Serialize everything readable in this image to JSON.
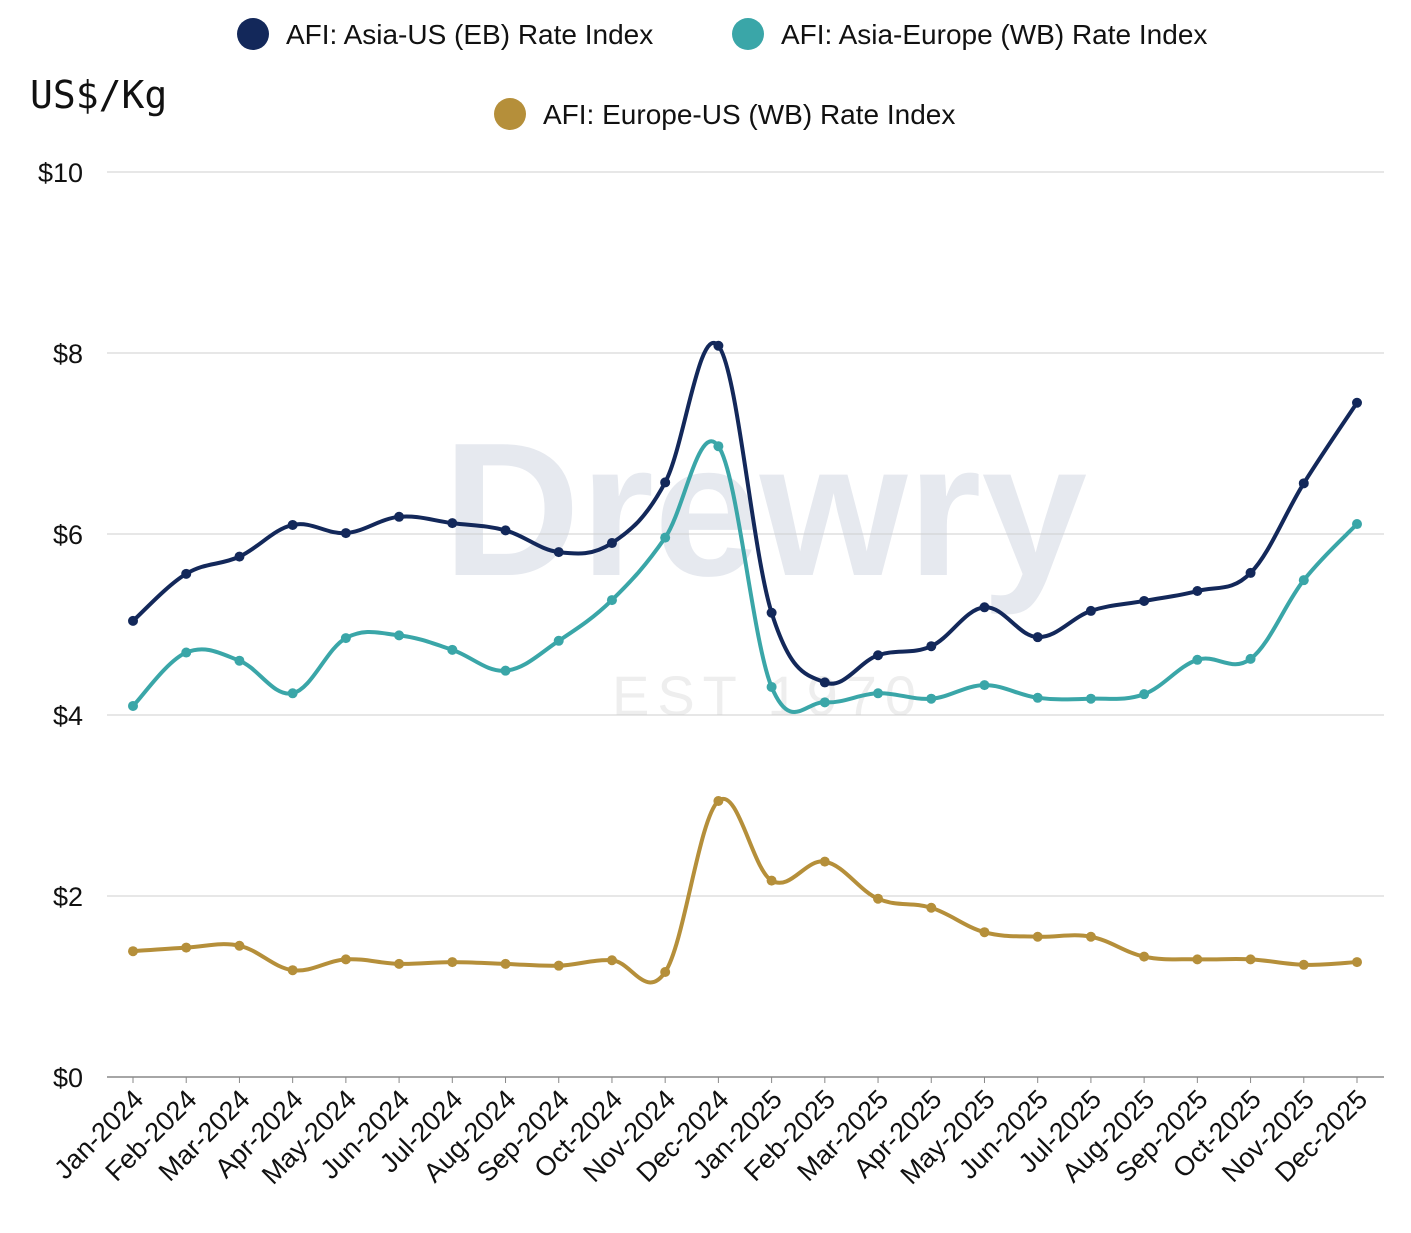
{
  "chart_data": {
    "type": "line",
    "title": "",
    "ylabel": "US$/Kg",
    "xlabel": "",
    "ylim": [
      0,
      10
    ],
    "yticks": [
      0,
      2,
      4,
      6,
      8,
      10
    ],
    "ytick_labels": [
      "$0",
      "$2",
      "$4",
      "$6",
      "$8",
      "$10"
    ],
    "grid": "horizontal",
    "legend_position": "top-center",
    "categories": [
      "Jan-2024",
      "Feb-2024",
      "Mar-2024",
      "Apr-2024",
      "May-2024",
      "Jun-2024",
      "Jul-2024",
      "Aug-2024",
      "Sep-2024",
      "Oct-2024",
      "Nov-2024",
      "Dec-2024",
      "Jan-2025",
      "Feb-2025",
      "Mar-2025",
      "Apr-2025",
      "May-2025",
      "Jun-2025",
      "Jul-2025",
      "Aug-2025",
      "Sep-2025",
      "Oct-2025",
      "Nov-2025",
      "Dec-2025"
    ],
    "series": [
      {
        "name": "AFI: Asia-US (EB) Rate Index",
        "color": "#13285a",
        "values": [
          5.04,
          5.56,
          5.75,
          6.1,
          6.01,
          6.19,
          6.12,
          6.04,
          5.8,
          5.9,
          6.57,
          8.08,
          5.13,
          4.36,
          4.66,
          4.76,
          5.19,
          4.86,
          5.15,
          5.26,
          5.37,
          5.57,
          6.56,
          7.45
        ]
      },
      {
        "name": "AFI: Asia-Europe (WB) Rate Index",
        "color": "#3aa6a8",
        "values": [
          4.1,
          4.69,
          4.6,
          4.24,
          4.85,
          4.88,
          4.72,
          4.49,
          4.82,
          5.27,
          5.96,
          6.97,
          4.31,
          4.14,
          4.24,
          4.18,
          4.33,
          4.19,
          4.18,
          4.23,
          4.61,
          4.62,
          5.49,
          6.11
        ]
      },
      {
        "name": "AFI: Europe-US (WB) Rate Index",
        "color": "#b58f3a",
        "values": [
          1.39,
          1.43,
          1.45,
          1.18,
          1.3,
          1.25,
          1.27,
          1.25,
          1.23,
          1.29,
          1.16,
          3.05,
          2.17,
          2.38,
          1.97,
          1.87,
          1.6,
          1.55,
          1.55,
          1.33,
          1.3,
          1.3,
          1.24,
          1.27
        ]
      }
    ]
  },
  "watermark": {
    "brand": "Drewry",
    "est": "EST 1970"
  }
}
